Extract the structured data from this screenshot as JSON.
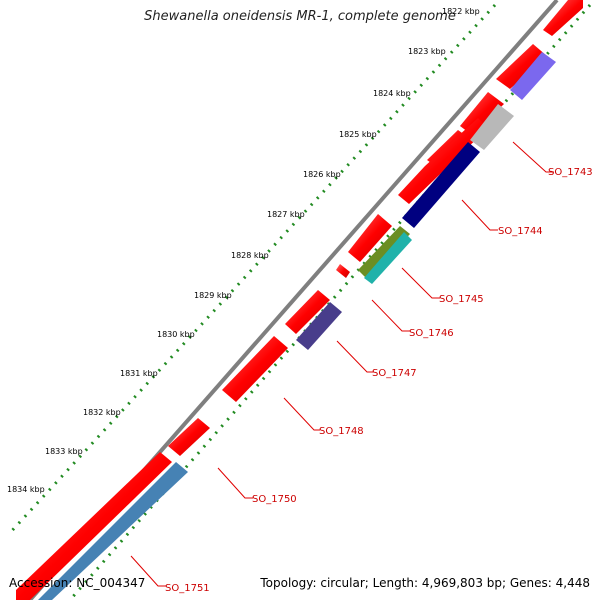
{
  "header": {
    "title": "Shewanella oneidensis MR-1, complete genome"
  },
  "footer": {
    "accession": "Accession: NC_004347",
    "summary": "Topology: circular; Length: 4,969,803 bp; Genes: 4,448"
  },
  "scale": {
    "ticks": [
      "1822 kbp",
      "1823 kbp",
      "1824 kbp",
      "1825 kbp",
      "1826 kbp",
      "1827 kbp",
      "1828 kbp",
      "1829 kbp",
      "1830 kbp",
      "1831 kbp",
      "1832 kbp",
      "1833 kbp",
      "1834 kbp"
    ]
  },
  "colors": {
    "backbone": "#808080",
    "tick_dots": "#228b22",
    "label_line": "#e00000",
    "label_text": "#cc0000",
    "cds": "#ff0000"
  },
  "gene_labels": [
    "SO_1743",
    "SO_1744",
    "SO_1745",
    "SO_1746",
    "SO_1747",
    "SO_1748",
    "SO_1750",
    "SO_1751"
  ]
}
